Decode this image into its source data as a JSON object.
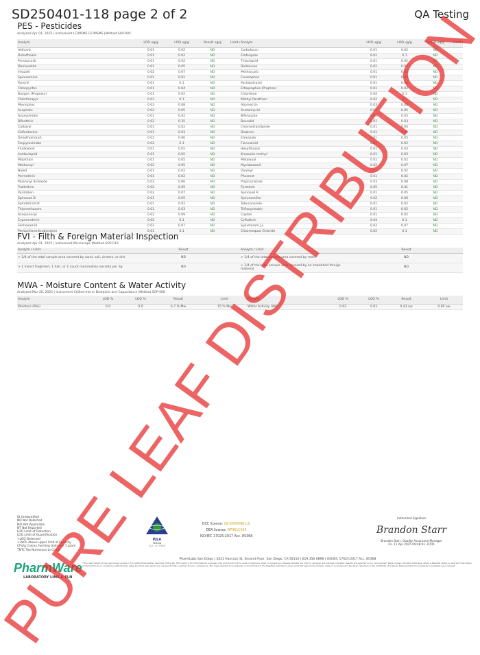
{
  "header": {
    "title": "SD250401-118 page 2 of 2",
    "right": "QA Testing"
  },
  "pes": {
    "title": "PES - Pesticides",
    "meta": "Analyzed Apr 01, 2025  |  Instrument LC/MSMS GC/MSMS  |Method SOP-005",
    "headers": [
      "Analyte",
      "LOD ug/g",
      "LOQ ug/g",
      "Result ug/g",
      "Limit ug/g"
    ],
    "left": [
      [
        "Aldicarb",
        "0.01",
        "0.02",
        "ND",
        ""
      ],
      [
        "Dimethoate",
        "0.01",
        "0.02",
        "ND",
        ""
      ],
      [
        "Fenoxycarb",
        "0.01",
        "0.02",
        "ND",
        ""
      ],
      [
        "Daminozide",
        "0.01",
        "0.05",
        "ND",
        ""
      ],
      [
        "Imazalil",
        "0.02",
        "0.07",
        "ND",
        ""
      ],
      [
        "Spiroxamine",
        "0.01",
        "0.02",
        "ND",
        ""
      ],
      [
        "Fipronil",
        "0.01",
        "0.1",
        "ND",
        ""
      ],
      [
        "Chlorpyrifos",
        "0.01",
        "0.04",
        "ND",
        ""
      ],
      [
        "Baygon (Propoxur)",
        "0.01",
        "0.02",
        "ND",
        ""
      ],
      [
        "Chlorfenapyr",
        "0.03",
        "0.1",
        "ND",
        ""
      ],
      [
        "Mevinphos",
        "0.03",
        "0.08",
        "ND",
        ""
      ],
      [
        "Acephate",
        "0.02",
        "0.05",
        "ND",
        ""
      ],
      [
        "Azoxystrobin",
        "0.01",
        "0.02",
        "ND",
        ""
      ],
      [
        "Bifenthrin",
        "0.02",
        "0.35",
        "ND",
        ""
      ],
      [
        "Carbaryl",
        "0.01",
        "0.02",
        "ND",
        ""
      ],
      [
        "Clofentezine",
        "0.01",
        "0.03",
        "ND",
        ""
      ],
      [
        "Dimethomorph",
        "0.02",
        "0.06",
        "ND",
        ""
      ],
      [
        "Fenpyroximate",
        "0.02",
        "0.1",
        "ND",
        ""
      ],
      [
        "Fludioxonil",
        "0.01",
        "0.05",
        "ND",
        ""
      ],
      [
        "Imidacloprid",
        "0.01",
        "0.05",
        "ND",
        ""
      ],
      [
        "Malathion",
        "0.01",
        "0.05",
        "ND",
        ""
      ],
      [
        "Methomyl",
        "0.02",
        "0.05",
        "ND",
        ""
      ],
      [
        "Naled",
        "0.01",
        "0.02",
        "ND",
        ""
      ],
      [
        "Permethrin",
        "0.01",
        "0.02",
        "ND",
        ""
      ],
      [
        "Piperonyl Butoxide",
        "0.02",
        "0.06",
        "ND",
        ""
      ],
      [
        "Prallethrin",
        "0.02",
        "0.05",
        "ND",
        ""
      ],
      [
        "Pyridaben",
        "0.02",
        "0.07",
        "ND",
        ""
      ],
      [
        "Spinosad D",
        "0.01",
        "0.05",
        "ND",
        ""
      ],
      [
        "Spirotetramat",
        "0.01",
        "0.02",
        "ND",
        ""
      ],
      [
        "Thiamethoxam",
        "0.01",
        "0.03",
        "ND",
        ""
      ],
      [
        "Acequinocyl",
        "0.02",
        "0.09",
        "ND",
        ""
      ],
      [
        "Cypermethrin",
        "0.02",
        "0.1",
        "ND",
        ""
      ],
      [
        "Fenhexamid",
        "0.02",
        "0.07",
        "ND",
        ""
      ],
      [
        "Pentachloronitrobenzene",
        "0.01",
        "0.1",
        "ND",
        ""
      ]
    ],
    "right": [
      [
        "Carbofuran",
        "0.01",
        "0.02",
        "ND",
        ""
      ],
      [
        "Etofenprox",
        "0.02",
        "0.1",
        "ND",
        ""
      ],
      [
        "Thiacloprid",
        "0.01",
        "0.02",
        "ND",
        ""
      ],
      [
        "Dichlorvos",
        "0.02",
        "0.07",
        "ND",
        ""
      ],
      [
        "Methiocarb",
        "0.01",
        "0.02",
        "ND",
        ""
      ],
      [
        "Coumaphos",
        "0.01",
        "0.02",
        "ND",
        ""
      ],
      [
        "Paclobutrazol",
        "0.01",
        "0.03",
        "ND",
        ""
      ],
      [
        "Ethoprophos (Prophos)",
        "0.01",
        "0.02",
        "ND",
        ""
      ],
      [
        "Chlordane",
        "0.04",
        "0.1",
        "ND",
        ""
      ],
      [
        "Methyl Parathion",
        "0.02",
        "0.1",
        "ND",
        ""
      ],
      [
        "Abamectin",
        "0.03",
        "0.08",
        "ND",
        ""
      ],
      [
        "Acetamiprid",
        "0.01",
        "0.05",
        "ND",
        ""
      ],
      [
        "Bifenazate",
        "0.01",
        "0.05",
        "ND",
        ""
      ],
      [
        "Boscalid",
        "0.01",
        "0.03",
        "ND",
        ""
      ],
      [
        "Chlorantraniliprole",
        "0.01",
        "0.04",
        "ND",
        ""
      ],
      [
        "Diazinon",
        "0.01",
        "0.02",
        "ND",
        ""
      ],
      [
        "Etoxazole",
        "0.01",
        "0.05",
        "ND",
        ""
      ],
      [
        "Flonicamid",
        "0.01",
        "0.02",
        "ND",
        ""
      ],
      [
        "Hexythiazox",
        "0.01",
        "0.03",
        "ND",
        ""
      ],
      [
        "Kresoxim-methyl",
        "0.01",
        "0.03",
        "ND",
        ""
      ],
      [
        "Metalaxyl",
        "0.01",
        "0.02",
        "ND",
        ""
      ],
      [
        "Myclobutanil",
        "0.02",
        "0.07",
        "ND",
        ""
      ],
      [
        "Oxamyl",
        "0.01",
        "0.02",
        "ND",
        ""
      ],
      [
        "Phosmet",
        "0.01",
        "0.02",
        "ND",
        ""
      ],
      [
        "Propiconazole",
        "0.03",
        "0.08",
        "ND",
        ""
      ],
      [
        "Pyrethrin",
        "0.05",
        "0.41",
        "ND",
        ""
      ],
      [
        "Spinosad A",
        "0.01",
        "0.05",
        "ND",
        ""
      ],
      [
        "Spiromesifen",
        "0.02",
        "0.06",
        "ND",
        ""
      ],
      [
        "Tebuconazole",
        "0.01",
        "0.02",
        "ND",
        ""
      ],
      [
        "Trifloxystrobin",
        "0.01",
        "0.02",
        "ND",
        ""
      ],
      [
        "Captan",
        "0.01",
        "0.02",
        "ND",
        ""
      ],
      [
        "Cyfluthrin",
        "0.04",
        "0.1",
        "ND",
        ""
      ],
      [
        "Spinetoram J,L",
        "0.02",
        "0.07",
        "ND",
        ""
      ],
      [
        "Chlormequat Chloride",
        "0.02",
        "0.1",
        "ND",
        ""
      ]
    ]
  },
  "fvi": {
    "title": "FVI - Filth & Foreign Material Inspection",
    "meta": "Analyzed Apr 01, 2025  |  Instrument Microscope  |Method SOP-010",
    "headers": [
      "Analyte / Limit",
      "Result",
      "Analyte / Limit",
      "Result"
    ],
    "rows": [
      [
        "> 1/4 of the total sample area covered by sand, soil, cinders, or dirt",
        "ND",
        "> 1/4 of the total sample area covered by mold",
        "ND"
      ],
      [
        "> 1 insect fragment, 1 hair, or 1 count mammalian excreta per 3g",
        "ND",
        "> 1/4 of the total sample area covered by an imbedded foreign material",
        "ND"
      ]
    ]
  },
  "mwa": {
    "title": "MWA - Moisture Content & Water Activity",
    "meta": "Analyzed Mar 20, 2025  |  Instrument Chilled-mirror Dewpoint and Capacitance  |Method SOP-008",
    "headers": [
      "Analyte",
      "LOD %",
      "LOQ %",
      "Result",
      "Limit",
      "Analyte",
      "LOD %",
      "LOQ %",
      "Result",
      "Limit"
    ],
    "row": [
      "Moisture (Moi)",
      "0.0",
      "0.0",
      "6.7 % Mw",
      "15 % Mw",
      "Water Activity (WA)",
      "0.03",
      "0.03",
      "0.43 aw",
      "0.85 aw"
    ]
  },
  "legend": [
    "UI Unidentified",
    "ND Not Detected",
    "N/A Not Applicable",
    "NT Not Reported",
    "LOD Limit of Detection",
    "LOQ Limit of Quantification",
    "<LOQ Detected",
    "<ULOL Above upper limit of linearity",
    "CFU/g Colony Forming Units per 1 gram",
    "TNTC Too Numerous to Count"
  ],
  "accreditation": {
    "logo_text": "PJLA",
    "sub": "Testing",
    "acc": "ACC. #75168"
  },
  "licenses": {
    "dcc_label": "DCC license:",
    "dcc": "C8-0000098-LIC",
    "dea_label": "DEA license:",
    "dea": "RP0611043",
    "iso": "ISO/IEC 17025:2017 Acc. 85368"
  },
  "signature": {
    "label": "Authorized Signature",
    "signature": "Brandon Starr",
    "name": "Brandon Starr, Quality Assurance Manager",
    "date": "Fri, 11 Apr 2025 09:48:01 -0700"
  },
  "address": "PharmLabs San Diego | 3421 Hancock St, Second Floor, San Diego, CA 92110 | 619.356.0898 | ISO/IEC 17025:2017 Acc. 85368",
  "disclaimer": "*This report shall not be reproduced except in full, without the written approval of the lab. This report is for informational purposes only and should not be used to diagnose, treat or prevent any disease. Results are only for samples and batches indicated. Results are reported on an \"as received\" basis, unless indicated otherwise. When a Pass/Fail status is reported, that status is intended to be in compliance with federal, state and local laws which are required for the customer to be in compliance. The measurement of uncertainty is not included in the Pass/Fail evaluation unless explicitly required by federal, state or local laws and has been reported on the certificate of analysis. Measurement of uncertainty is available upon request.",
  "logo": {
    "name": "PharmWare",
    "sub": "LABORATORY LIMS & ELN"
  },
  "watermark": "PURE LEAF DISTRIBUTION",
  "colors": {
    "nd": "#3a8a55",
    "watermark": "#e62828",
    "license": "#c9a227",
    "logo": "#1aa37a"
  }
}
